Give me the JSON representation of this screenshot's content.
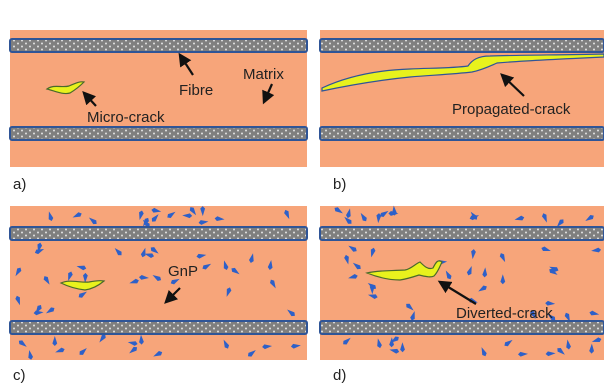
{
  "colors": {
    "matrix": "#F7A57A",
    "fibre_fill": "#7F7F7F",
    "fibre_border": "#2F5597",
    "fibre_dots": "#E8E8E8",
    "crack_fill": "#E8F21D",
    "crack_edge": "#4A6A2A",
    "gnp": "#2E60C8",
    "arrow": "#111111"
  },
  "icons": {
    "fibre": "dotted-fibre-band",
    "crack": "crack-shape",
    "gnp": "platelet-shape",
    "arrow": "callout-arrow"
  },
  "panels": {
    "a": {
      "label": "a)",
      "callouts": {
        "fibre": "Fibre",
        "matrix": "Matrix",
        "crack": "Micro-crack"
      }
    },
    "b": {
      "label": "b)",
      "callouts": {
        "crack": "Propagated-crack"
      }
    },
    "c": {
      "label": "c)",
      "callouts": {
        "gnp": "GnP"
      }
    },
    "d": {
      "label": "d)",
      "callouts": {
        "crack": "Diverted-crack"
      }
    }
  }
}
